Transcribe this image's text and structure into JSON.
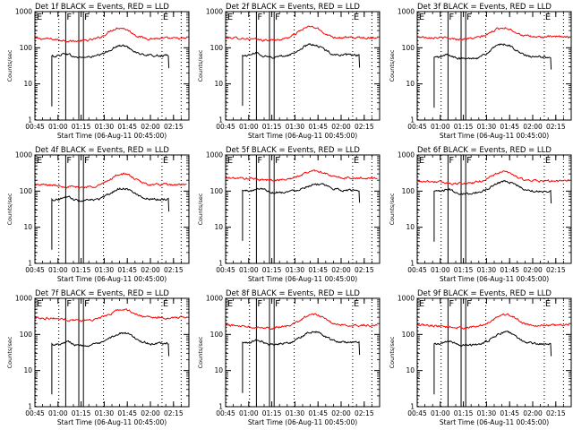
{
  "chart_data": [
    {
      "type": "line",
      "title": "Det 1f BLACK = Events, RED = LLD",
      "xlabel": "Start Time (06-Aug-11 00:45:00)",
      "ylabel": "Counts/sec",
      "yscale": "log",
      "ylim": [
        1,
        1000
      ],
      "xlim": [
        "00:45",
        "02:25"
      ],
      "xticks": [
        "00:45",
        "01:00",
        "01:15",
        "01:30",
        "01:45",
        "02:00",
        "02:15"
      ],
      "yticks": [
        "1",
        "10",
        "100",
        "1000"
      ],
      "markers": [
        {
          "time": "00:45:30",
          "label": "E",
          "style": "dotted"
        },
        {
          "time": "01:00:30",
          "label": "",
          "style": "dotted"
        },
        {
          "time": "01:05",
          "label": "F",
          "style": "solid"
        },
        {
          "time": "01:13:30",
          "label": "",
          "style": "solid"
        },
        {
          "time": "01:16:30",
          "label": "F",
          "style": "solid"
        },
        {
          "time": "01:29:30",
          "label": "",
          "style": "dotted"
        },
        {
          "time": "02:07:30",
          "label": "E",
          "style": "dotted"
        },
        {
          "time": "02:20",
          "label": "",
          "style": "dotted"
        }
      ],
      "series": [
        {
          "name": "LLD",
          "color": "#ff0000",
          "start": "00:45",
          "end": "02:24",
          "base": 180,
          "bump": 2.0,
          "bump_center": "01:40",
          "dip": 0.85
        },
        {
          "name": "Events",
          "color": "#000000",
          "start": "00:56",
          "end": "02:12",
          "base": 60,
          "bump": 1.9,
          "bump_center": "01:41",
          "dip": 0.9
        }
      ]
    },
    {
      "type": "line",
      "title": "Det 2f BLACK = Events, RED = LLD",
      "xlabel": "Start Time (06-Aug-11 00:45:00)",
      "ylabel": "Counts/sec",
      "yscale": "log",
      "ylim": [
        1,
        1000
      ],
      "xlim": [
        "00:45",
        "02:25"
      ],
      "xticks": [
        "00:45",
        "01:00",
        "01:15",
        "01:30",
        "01:45",
        "02:00",
        "02:15"
      ],
      "yticks": [
        "1",
        "10",
        "100",
        "1000"
      ],
      "markers": [
        {
          "time": "00:45:30",
          "label": "E",
          "style": "dotted"
        },
        {
          "time": "01:00:30",
          "label": "",
          "style": "dotted"
        },
        {
          "time": "01:05",
          "label": "F",
          "style": "solid"
        },
        {
          "time": "01:13:30",
          "label": "",
          "style": "solid"
        },
        {
          "time": "01:16:30",
          "label": "F",
          "style": "solid"
        },
        {
          "time": "01:29:30",
          "label": "",
          "style": "dotted"
        },
        {
          "time": "02:07:30",
          "label": "E",
          "style": "dotted"
        },
        {
          "time": "02:20",
          "label": "",
          "style": "dotted"
        }
      ],
      "series": [
        {
          "name": "LLD",
          "color": "#ff0000",
          "start": "00:45",
          "end": "02:24",
          "base": 190,
          "bump": 2.0,
          "bump_center": "01:40",
          "dip": 0.85
        },
        {
          "name": "Events",
          "color": "#000000",
          "start": "00:56",
          "end": "02:12",
          "base": 62,
          "bump": 2.0,
          "bump_center": "01:41",
          "dip": 0.9
        }
      ]
    },
    {
      "type": "line",
      "title": "Det 3f BLACK = Events, RED = LLD",
      "xlabel": "Start Time (06-Aug-11 00:45:00)",
      "ylabel": "Counts/sec",
      "yscale": "log",
      "ylim": [
        1,
        1000
      ],
      "xlim": [
        "00:45",
        "02:25"
      ],
      "xticks": [
        "00:45",
        "01:00",
        "01:15",
        "01:30",
        "01:45",
        "02:00",
        "02:15"
      ],
      "yticks": [
        "1",
        "10",
        "100",
        "1000"
      ],
      "markers": [
        {
          "time": "00:45:30",
          "label": "E",
          "style": "dotted"
        },
        {
          "time": "01:00:30",
          "label": "",
          "style": "dotted"
        },
        {
          "time": "01:05",
          "label": "F",
          "style": "solid"
        },
        {
          "time": "01:13:30",
          "label": "",
          "style": "solid"
        },
        {
          "time": "01:16:30",
          "label": "F",
          "style": "solid"
        },
        {
          "time": "01:29:30",
          "label": "",
          "style": "dotted"
        },
        {
          "time": "02:07:30",
          "label": "E",
          "style": "dotted"
        },
        {
          "time": "02:20",
          "label": "",
          "style": "dotted"
        }
      ],
      "series": [
        {
          "name": "LLD",
          "color": "#ff0000",
          "start": "00:45",
          "end": "02:24",
          "base": 200,
          "bump": 1.8,
          "bump_center": "01:41",
          "dip": 0.88
        },
        {
          "name": "Events",
          "color": "#000000",
          "start": "00:56",
          "end": "02:12",
          "base": 55,
          "bump": 2.3,
          "bump_center": "01:41",
          "dip": 0.9
        }
      ]
    },
    {
      "type": "line",
      "title": "Det 4f BLACK = Events, RED = LLD",
      "xlabel": "Start Time (06-Aug-11 00:45:00)",
      "ylabel": "Counts/sec",
      "yscale": "log",
      "ylim": [
        1,
        1000
      ],
      "xlim": [
        "00:45",
        "02:25"
      ],
      "xticks": [
        "00:45",
        "01:00",
        "01:15",
        "01:30",
        "01:45",
        "02:00",
        "02:15"
      ],
      "yticks": [
        "1",
        "10",
        "100",
        "1000"
      ],
      "markers": [
        {
          "time": "00:45:30",
          "label": "E",
          "style": "dotted"
        },
        {
          "time": "01:00:30",
          "label": "",
          "style": "dotted"
        },
        {
          "time": "01:05",
          "label": "F",
          "style": "solid"
        },
        {
          "time": "01:13:30",
          "label": "",
          "style": "solid"
        },
        {
          "time": "01:16:30",
          "label": "F",
          "style": "solid"
        },
        {
          "time": "01:29:30",
          "label": "",
          "style": "dotted"
        },
        {
          "time": "02:07:30",
          "label": "E",
          "style": "dotted"
        },
        {
          "time": "02:20",
          "label": "",
          "style": "dotted"
        }
      ],
      "series": [
        {
          "name": "LLD",
          "color": "#ff0000",
          "start": "00:45",
          "end": "02:24",
          "base": 150,
          "bump": 2.0,
          "bump_center": "01:42",
          "dip": 0.85
        },
        {
          "name": "Events",
          "color": "#000000",
          "start": "00:56",
          "end": "02:12",
          "base": 60,
          "bump": 2.0,
          "bump_center": "01:42",
          "dip": 0.9
        }
      ]
    },
    {
      "type": "line",
      "title": "Det 5f BLACK = Events, RED = LLD",
      "xlabel": "Start Time (06-Aug-11 00:45:00)",
      "ylabel": "Counts/sec",
      "yscale": "log",
      "ylim": [
        1,
        1000
      ],
      "xlim": [
        "00:45",
        "02:25"
      ],
      "xticks": [
        "00:45",
        "01:00",
        "01:15",
        "01:30",
        "01:45",
        "02:00",
        "02:15"
      ],
      "yticks": [
        "1",
        "10",
        "100",
        "1000"
      ],
      "markers": [
        {
          "time": "00:45:30",
          "label": "E",
          "style": "dotted"
        },
        {
          "time": "01:00:30",
          "label": "",
          "style": "dotted"
        },
        {
          "time": "01:05",
          "label": "F",
          "style": "solid"
        },
        {
          "time": "01:13:30",
          "label": "",
          "style": "solid"
        },
        {
          "time": "01:16:30",
          "label": "F",
          "style": "solid"
        },
        {
          "time": "01:29:30",
          "label": "",
          "style": "dotted"
        },
        {
          "time": "02:07:30",
          "label": "E",
          "style": "dotted"
        },
        {
          "time": "02:20",
          "label": "",
          "style": "dotted"
        }
      ],
      "series": [
        {
          "name": "LLD",
          "color": "#ff0000",
          "start": "00:45",
          "end": "02:24",
          "base": 230,
          "bump": 1.6,
          "bump_center": "01:43",
          "dip": 0.88
        },
        {
          "name": "Events",
          "color": "#000000",
          "start": "00:56",
          "end": "02:12",
          "base": 105,
          "bump": 1.5,
          "bump_center": "01:44",
          "dip": 0.88
        }
      ]
    },
    {
      "type": "line",
      "title": "Det 6f BLACK = Events, RED = LLD",
      "xlabel": "Start Time (06-Aug-11 00:45:00)",
      "ylabel": "Counts/sec",
      "yscale": "log",
      "ylim": [
        1,
        1000
      ],
      "xlim": [
        "00:45",
        "02:25"
      ],
      "xticks": [
        "00:45",
        "01:00",
        "01:15",
        "01:30",
        "01:45",
        "02:00",
        "02:15"
      ],
      "yticks": [
        "1",
        "10",
        "100",
        "1000"
      ],
      "markers": [
        {
          "time": "00:45:30",
          "label": "E",
          "style": "dotted"
        },
        {
          "time": "01:00:30",
          "label": "",
          "style": "dotted"
        },
        {
          "time": "01:05",
          "label": "F",
          "style": "solid"
        },
        {
          "time": "01:13:30",
          "label": "",
          "style": "solid"
        },
        {
          "time": "01:16:30",
          "label": "F",
          "style": "solid"
        },
        {
          "time": "01:29:30",
          "label": "",
          "style": "dotted"
        },
        {
          "time": "02:07:30",
          "label": "E",
          "style": "dotted"
        },
        {
          "time": "02:20",
          "label": "",
          "style": "dotted"
        }
      ],
      "series": [
        {
          "name": "LLD",
          "color": "#ff0000",
          "start": "00:45",
          "end": "02:24",
          "base": 190,
          "bump": 1.8,
          "bump_center": "01:41",
          "dip": 0.85
        },
        {
          "name": "Events",
          "color": "#000000",
          "start": "00:56",
          "end": "02:12",
          "base": 100,
          "bump": 1.9,
          "bump_center": "01:42",
          "dip": 0.85
        }
      ]
    },
    {
      "type": "line",
      "title": "Det 7f BLACK = Events, RED = LLD",
      "xlabel": "Start Time (06-Aug-11 00:45:00)",
      "ylabel": "Counts/sec",
      "yscale": "log",
      "ylim": [
        1,
        1000
      ],
      "xlim": [
        "00:45",
        "02:25"
      ],
      "xticks": [
        "00:45",
        "01:00",
        "01:15",
        "01:30",
        "01:45",
        "02:00",
        "02:15"
      ],
      "yticks": [
        "1",
        "10",
        "100",
        "1000"
      ],
      "markers": [
        {
          "time": "00:45:30",
          "label": "E",
          "style": "dotted"
        },
        {
          "time": "01:00:30",
          "label": "",
          "style": "dotted"
        },
        {
          "time": "01:05",
          "label": "F",
          "style": "solid"
        },
        {
          "time": "01:13:30",
          "label": "",
          "style": "solid"
        },
        {
          "time": "01:16:30",
          "label": "F",
          "style": "solid"
        },
        {
          "time": "01:29:30",
          "label": "",
          "style": "dotted"
        },
        {
          "time": "02:07:30",
          "label": "E",
          "style": "dotted"
        },
        {
          "time": "02:20",
          "label": "",
          "style": "dotted"
        }
      ],
      "series": [
        {
          "name": "LLD",
          "color": "#ff0000",
          "start": "00:45",
          "end": "02:24",
          "base": 290,
          "bump": 1.7,
          "bump_center": "01:42",
          "dip": 0.85
        },
        {
          "name": "Events",
          "color": "#000000",
          "start": "00:56",
          "end": "02:12",
          "base": 55,
          "bump": 2.0,
          "bump_center": "01:42",
          "dip": 0.9
        }
      ]
    },
    {
      "type": "line",
      "title": "Det 8f BLACK = Events, RED = LLD",
      "xlabel": "Start Time (06-Aug-11 00:45:00)",
      "ylabel": "Counts/sec",
      "yscale": "log",
      "ylim": [
        1,
        1000
      ],
      "xlim": [
        "00:45",
        "02:25"
      ],
      "xticks": [
        "00:45",
        "01:00",
        "01:15",
        "01:30",
        "01:45",
        "02:00",
        "02:15"
      ],
      "yticks": [
        "1",
        "10",
        "100",
        "1000"
      ],
      "markers": [
        {
          "time": "00:45:30",
          "label": "E",
          "style": "dotted"
        },
        {
          "time": "01:00:30",
          "label": "",
          "style": "dotted"
        },
        {
          "time": "01:05",
          "label": "F",
          "style": "solid"
        },
        {
          "time": "01:13:30",
          "label": "",
          "style": "solid"
        },
        {
          "time": "01:16:30",
          "label": "F",
          "style": "solid"
        },
        {
          "time": "01:29:30",
          "label": "",
          "style": "dotted"
        },
        {
          "time": "02:07:30",
          "label": "E",
          "style": "dotted"
        },
        {
          "time": "02:20",
          "label": "",
          "style": "dotted"
        }
      ],
      "series": [
        {
          "name": "LLD",
          "color": "#ff0000",
          "start": "00:45",
          "end": "02:24",
          "base": 180,
          "bump": 2.0,
          "bump_center": "01:42",
          "dip": 0.85
        },
        {
          "name": "Events",
          "color": "#000000",
          "start": "00:56",
          "end": "02:12",
          "base": 60,
          "bump": 2.0,
          "bump_center": "01:42",
          "dip": 0.9
        }
      ]
    },
    {
      "type": "line",
      "title": "Det 9f BLACK = Events, RED = LLD",
      "xlabel": "Start Time (06-Aug-11 00:45:00)",
      "ylabel": "Counts/sec",
      "yscale": "log",
      "ylim": [
        1,
        1000
      ],
      "xlim": [
        "00:45",
        "02:25"
      ],
      "xticks": [
        "00:45",
        "01:00",
        "01:15",
        "01:30",
        "01:45",
        "02:00",
        "02:15"
      ],
      "yticks": [
        "1",
        "10",
        "100",
        "1000"
      ],
      "markers": [
        {
          "time": "00:45:30",
          "label": "E",
          "style": "dotted"
        },
        {
          "time": "01:00:30",
          "label": "",
          "style": "dotted"
        },
        {
          "time": "01:05",
          "label": "F",
          "style": "solid"
        },
        {
          "time": "01:13:30",
          "label": "",
          "style": "solid"
        },
        {
          "time": "01:16:30",
          "label": "F",
          "style": "solid"
        },
        {
          "time": "01:29:30",
          "label": "",
          "style": "dotted"
        },
        {
          "time": "02:07:30",
          "label": "E",
          "style": "dotted"
        },
        {
          "time": "02:20",
          "label": "",
          "style": "dotted"
        }
      ],
      "series": [
        {
          "name": "LLD",
          "color": "#ff0000",
          "start": "00:45",
          "end": "02:24",
          "base": 180,
          "bump": 2.0,
          "bump_center": "01:42",
          "dip": 0.85
        },
        {
          "name": "Events",
          "color": "#000000",
          "start": "00:56",
          "end": "02:12",
          "base": 55,
          "bump": 2.1,
          "bump_center": "01:42",
          "dip": 0.9
        }
      ]
    }
  ]
}
